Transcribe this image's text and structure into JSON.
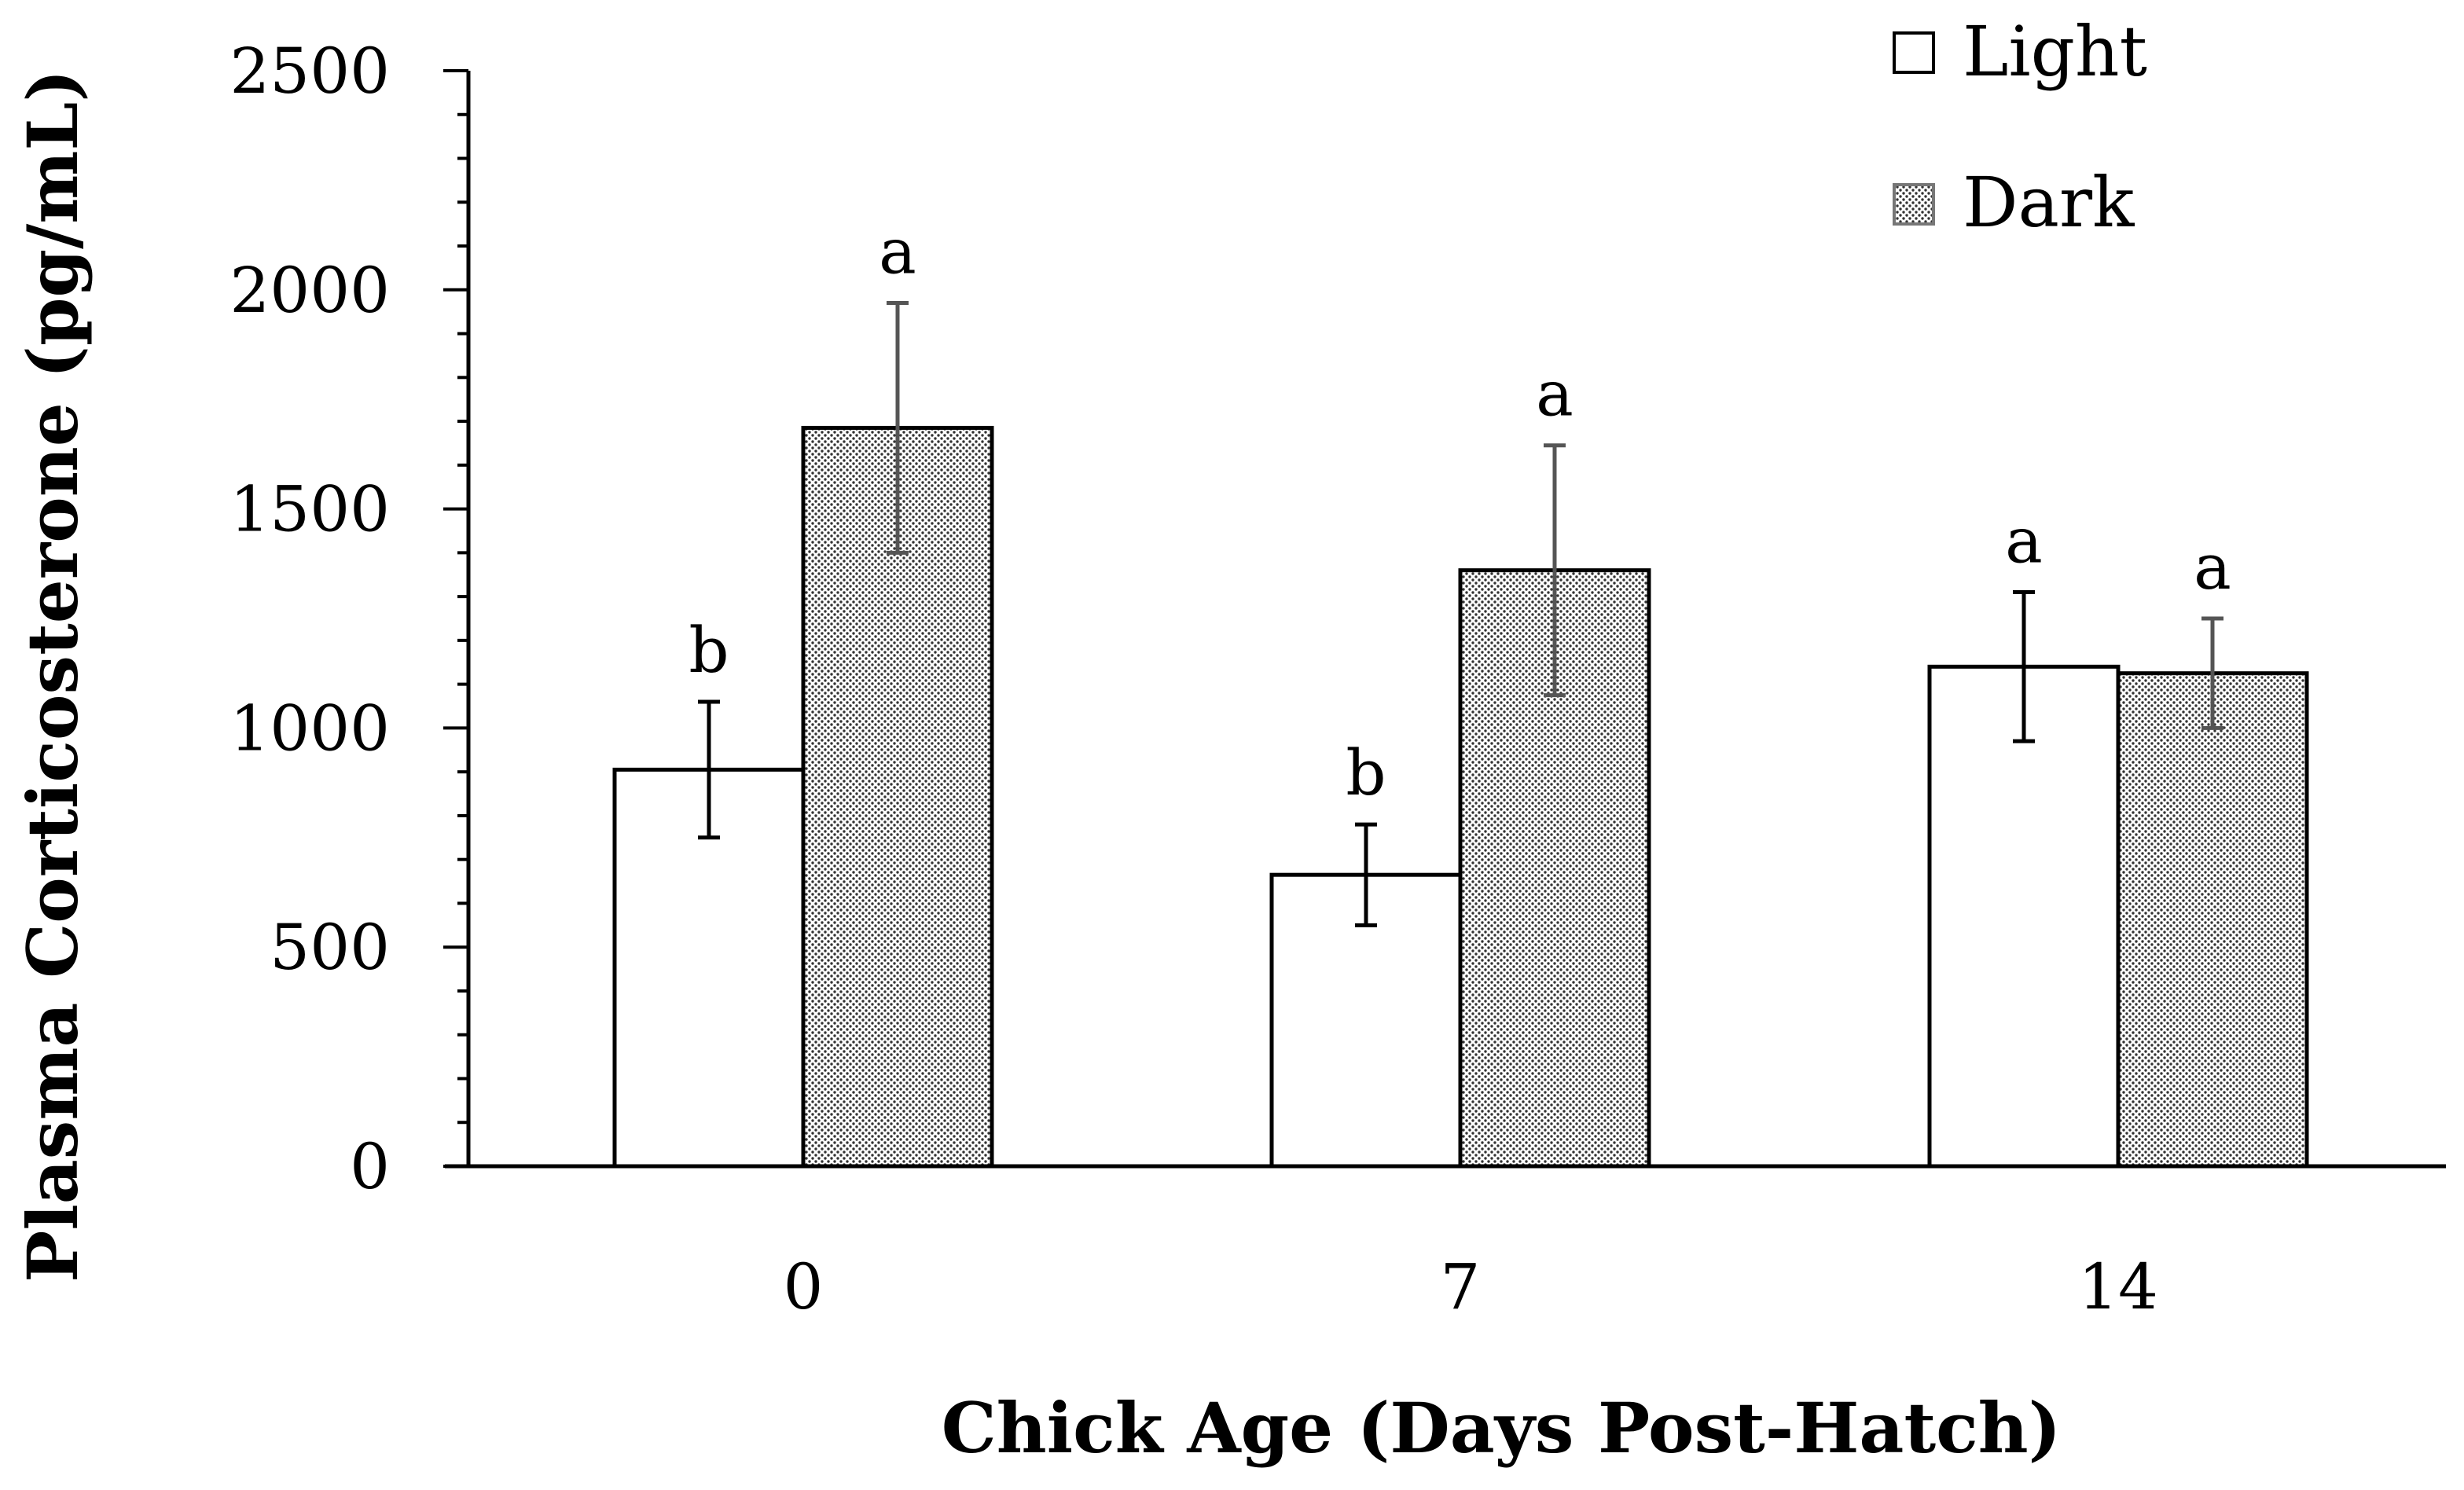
{
  "chart_data": {
    "type": "bar",
    "title": "",
    "xlabel": "Chick Age (Days Post-Hatch)",
    "ylabel": "Plasma Corticosterone (pg/mL)",
    "ylim": [
      0,
      2500
    ],
    "yticks": [
      "0",
      "500",
      "1000",
      "1500",
      "2000",
      "2500"
    ],
    "ytick_values": [
      0,
      500,
      1000,
      1500,
      2000,
      2500
    ],
    "categories": [
      "0",
      "7",
      "14"
    ],
    "legend_position": "top-right",
    "series": [
      {
        "name": "Light",
        "values": [
          905,
          665,
          1140
        ],
        "errors": [
          155,
          115,
          170
        ],
        "labels": [
          "b",
          "b",
          "a"
        ],
        "fill": "#ffffff"
      },
      {
        "name": "Dark",
        "values": [
          1685,
          1360,
          1125
        ],
        "errors": [
          285,
          285,
          125
        ],
        "labels": [
          "a",
          "a",
          "a"
        ],
        "fill": "#cfcfcf"
      }
    ],
    "error_bar_color": "#555555"
  }
}
